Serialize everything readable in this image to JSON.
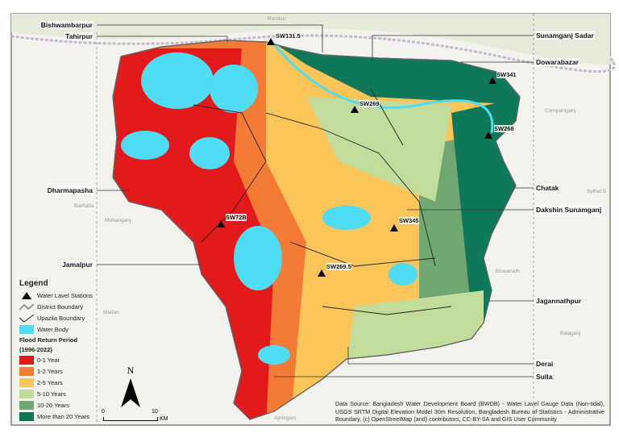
{
  "legend": {
    "title": "Legend",
    "stations": "Water Lavel Stations",
    "district": "District Boundary",
    "upazila": "Upazila Boundary",
    "water": "Water Body",
    "flood_title": "Flood Return Period",
    "flood_years": "(1996-2022)",
    "classes": [
      {
        "label": "0-1 Year",
        "color": "#e31a1c"
      },
      {
        "label": "1-2 Years",
        "color": "#f47b36"
      },
      {
        "label": "2-5 Years",
        "color": "#fcc55a"
      },
      {
        "label": "5-10 Years",
        "color": "#c2dc9c"
      },
      {
        "label": "10-20 Years",
        "color": "#6fa873"
      },
      {
        "label": "More than 20 Years",
        "color": "#10785a"
      }
    ],
    "water_color": "#4fdcf5"
  },
  "north_arrow": "N",
  "scale": {
    "start": "0",
    "end": "10",
    "unit": "KM"
  },
  "stations": [
    "SW131.5",
    "SW269",
    "SW341",
    "SW268",
    "SW72B",
    "SW345",
    "SW269.5"
  ],
  "upazilas_left": [
    "Bishwambarpur",
    "Tahirpur",
    "Dharmapasha",
    "Jamalpur"
  ],
  "upazilas_right": [
    "Sunamganj Sadar",
    "Dowarabazar",
    "Chatak",
    "Dakshin Sunamganj",
    "Jagannathpur",
    "Derai",
    "Sulla"
  ],
  "basemap_places": [
    "Ranikor",
    "Companiganj",
    "Sylhet S",
    "Barhatta",
    "Mohanganj",
    "Madan",
    "Biswanath",
    "Balaganj",
    "Ajmirganj"
  ],
  "source": "Data Source: Bangladesh Water Development Board (BWDB) - Water Lavel Gauge Data (Non-tidal), USGS SRTM Digital Elevation Model 30m Resolution, Bangladesh Bureau of Statistics - Administrative Boundary, (c) OpenStreetMap (and) contributors, CC-BY-SA and GIS User Community"
}
